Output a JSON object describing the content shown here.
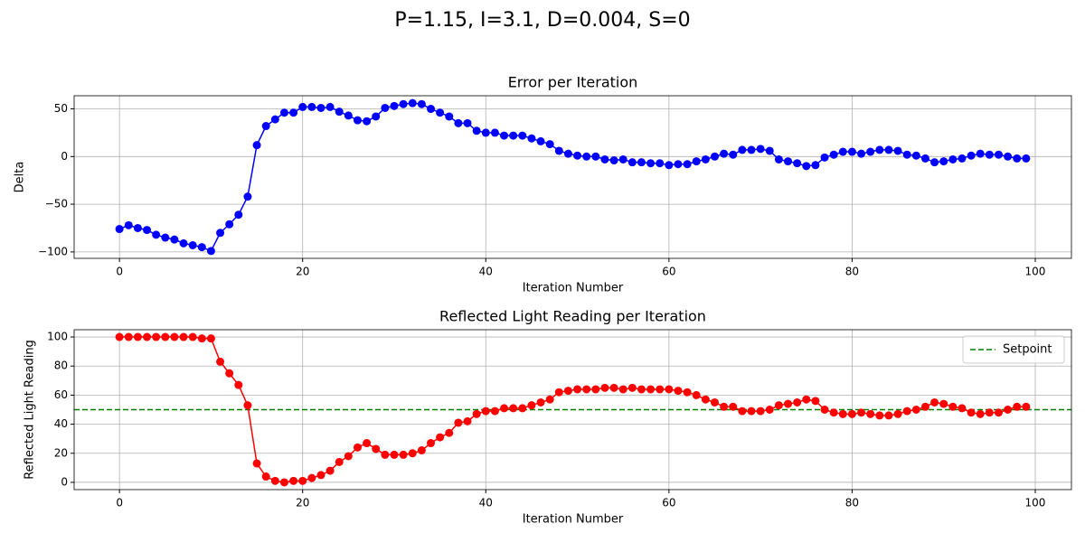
{
  "title": "P=1.15, I=3.1, D=0.004, S=0",
  "chart_data": [
    {
      "type": "line",
      "title": "Error per Iteration",
      "xlabel": "Iteration Number",
      "ylabel": "Delta",
      "color": "blue",
      "marker": "circle",
      "grid": true,
      "x": [
        0,
        1,
        2,
        3,
        4,
        5,
        6,
        7,
        8,
        9,
        10,
        11,
        12,
        13,
        14,
        15,
        16,
        17,
        18,
        19,
        20,
        21,
        22,
        23,
        24,
        25,
        26,
        27,
        28,
        29,
        30,
        31,
        32,
        33,
        34,
        35,
        36,
        37,
        38,
        39,
        40,
        41,
        42,
        43,
        44,
        45,
        46,
        47,
        48,
        49,
        50,
        51,
        52,
        53,
        54,
        55,
        56,
        57,
        58,
        59,
        60,
        61,
        62,
        63,
        64,
        65,
        66,
        67,
        68,
        69,
        70,
        71,
        72,
        73,
        74,
        75,
        76,
        77,
        78,
        79,
        80,
        81,
        82,
        83,
        84,
        85,
        86,
        87,
        88,
        89,
        90,
        91,
        92,
        93,
        94,
        95,
        96,
        97,
        98,
        99
      ],
      "values": [
        -76,
        -72,
        -75,
        -77,
        -82,
        -85,
        -87,
        -91,
        -93,
        -95,
        -99,
        -80,
        -71,
        -61,
        -42,
        12,
        32,
        39,
        46,
        46,
        52,
        52,
        51,
        52,
        47,
        43,
        38,
        37,
        42,
        51,
        53,
        55,
        56,
        55,
        50,
        46,
        42,
        35,
        35,
        27,
        25,
        25,
        22,
        22,
        22,
        19,
        16,
        13,
        6,
        3,
        1,
        0,
        0,
        -3,
        -4,
        -3,
        -6,
        -6,
        -7,
        -7,
        -9,
        -8,
        -8,
        -5,
        -3,
        0,
        3,
        2,
        7,
        7,
        8,
        6,
        -3,
        -5,
        -7,
        -10,
        -9,
        -1,
        2,
        5,
        5,
        3,
        5,
        7,
        7,
        6,
        2,
        1,
        -2,
        -6,
        -5,
        -3,
        -2,
        1,
        3,
        2,
        2,
        0,
        -2,
        -2
      ],
      "xlim": [
        -4.95,
        103.95
      ],
      "xticks": [
        0,
        20,
        40,
        60,
        80,
        100
      ],
      "ylim": [
        -106.75,
        63.75
      ],
      "yticks": [
        {
          "value": -100,
          "label": "−100"
        },
        {
          "value": -50,
          "label": "−50"
        },
        0,
        50
      ]
    },
    {
      "type": "line",
      "title": "Reflected Light Reading per Iteration",
      "xlabel": "Iteration Number",
      "ylabel": "Reflected Light Reading",
      "color": "red",
      "marker": "circle",
      "grid": true,
      "legend": "upper right",
      "x": [
        0,
        1,
        2,
        3,
        4,
        5,
        6,
        7,
        8,
        9,
        10,
        11,
        12,
        13,
        14,
        15,
        16,
        17,
        18,
        19,
        20,
        21,
        22,
        23,
        24,
        25,
        26,
        27,
        28,
        29,
        30,
        31,
        32,
        33,
        34,
        35,
        36,
        37,
        38,
        39,
        40,
        41,
        42,
        43,
        44,
        45,
        46,
        47,
        48,
        49,
        50,
        51,
        52,
        53,
        54,
        55,
        56,
        57,
        58,
        59,
        60,
        61,
        62,
        63,
        64,
        65,
        66,
        67,
        68,
        69,
        70,
        71,
        72,
        73,
        74,
        75,
        76,
        77,
        78,
        79,
        80,
        81,
        82,
        83,
        84,
        85,
        86,
        87,
        88,
        89,
        90,
        91,
        92,
        93,
        94,
        95,
        96,
        97,
        98,
        99
      ],
      "values": [
        100,
        100,
        100,
        100,
        100,
        100,
        100,
        100,
        100,
        99,
        99,
        83,
        75,
        67,
        53,
        13,
        4,
        1,
        0,
        1,
        1,
        3,
        5,
        8,
        14,
        18,
        24,
        27,
        23,
        19,
        19,
        19,
        20,
        22,
        27,
        31,
        34,
        41,
        42,
        47,
        49,
        49,
        51,
        51,
        51,
        53,
        55,
        57,
        62,
        63,
        64,
        64,
        64,
        65,
        65,
        64,
        65,
        64,
        64,
        64,
        64,
        63,
        62,
        60,
        57,
        55,
        52,
        52,
        49,
        49,
        49,
        50,
        53,
        54,
        55,
        57,
        56,
        50,
        48,
        47,
        47,
        48,
        47,
        46,
        46,
        47,
        49,
        50,
        52,
        55,
        54,
        52,
        51,
        48,
        47,
        48,
        48,
        50,
        52,
        52
      ],
      "xlim": [
        -4.95,
        103.95
      ],
      "xticks": [
        0,
        20,
        40,
        60,
        80,
        100
      ],
      "ylim": [
        -5,
        105
      ],
      "yticks": [
        0,
        20,
        40,
        60,
        80,
        100
      ],
      "hlines": [
        {
          "name": "Setpoint",
          "y": 50,
          "color": "green",
          "style": "dashed"
        }
      ]
    }
  ]
}
